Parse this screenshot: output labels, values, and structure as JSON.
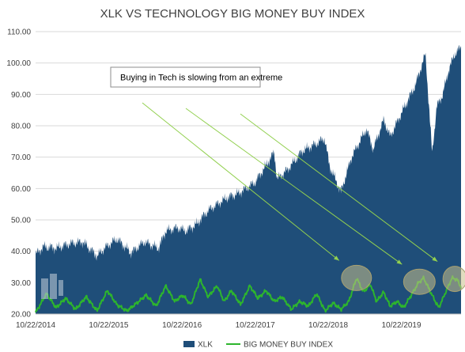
{
  "chart_data": {
    "type": "area",
    "title": "XLK VS TECHNOLOGY BIG MONEY BUY INDEX",
    "xlabel": "",
    "ylabel": "",
    "ylim": [
      20,
      110
    ],
    "y_ticks": [
      "20.00",
      "30.00",
      "40.00",
      "50.00",
      "60.00",
      "70.00",
      "80.00",
      "90.00",
      "100.00",
      "110.00"
    ],
    "x_ticks": [
      "10/22/2014",
      "10/22/2015",
      "10/22/2016",
      "10/22/2017",
      "10/22/2018",
      "10/22/2019"
    ],
    "x_range": [
      "2014-10-22",
      "2020-08-15"
    ],
    "grid": true,
    "legend_position": "bottom",
    "annotation": "Buying in Tech is slowing from an extreme",
    "series": [
      {
        "name": "XLK",
        "style": "area",
        "color": "#1f4e79",
        "points": [
          [
            "2014-10-22",
            39.0
          ],
          [
            "2014-12-01",
            41.5
          ],
          [
            "2015-02-01",
            41.0
          ],
          [
            "2015-04-15",
            42.5
          ],
          [
            "2015-06-15",
            43.0
          ],
          [
            "2015-08-24",
            38.5
          ],
          [
            "2015-10-01",
            41.0
          ],
          [
            "2015-12-01",
            44.0
          ],
          [
            "2016-02-10",
            39.5
          ],
          [
            "2016-04-15",
            43.0
          ],
          [
            "2016-06-27",
            41.0
          ],
          [
            "2016-08-01",
            46.5
          ],
          [
            "2016-10-01",
            47.5
          ],
          [
            "2016-11-10",
            46.5
          ],
          [
            "2016-12-31",
            48.5
          ],
          [
            "2017-03-01",
            53.0
          ],
          [
            "2017-06-01",
            57.0
          ],
          [
            "2017-08-01",
            58.5
          ],
          [
            "2017-10-22",
            62.0
          ],
          [
            "2018-01-25",
            71.5
          ],
          [
            "2018-02-08",
            63.0
          ],
          [
            "2018-04-01",
            66.0
          ],
          [
            "2018-06-15",
            72.0
          ],
          [
            "2018-08-15",
            74.0
          ],
          [
            "2018-10-03",
            76.0
          ],
          [
            "2018-10-29",
            67.0
          ],
          [
            "2018-12-24",
            59.0
          ],
          [
            "2019-02-15",
            70.0
          ],
          [
            "2019-04-30",
            79.0
          ],
          [
            "2019-06-03",
            72.5
          ],
          [
            "2019-07-26",
            82.0
          ],
          [
            "2019-08-26",
            76.5
          ],
          [
            "2019-10-22",
            84.0
          ],
          [
            "2019-12-31",
            93.0
          ],
          [
            "2020-02-19",
            103.0
          ],
          [
            "2020-03-23",
            71.0
          ],
          [
            "2020-04-15",
            86.0
          ],
          [
            "2020-05-15",
            90.0
          ],
          [
            "2020-06-15",
            98.0
          ],
          [
            "2020-07-15",
            103.0
          ],
          [
            "2020-08-15",
            105.0
          ]
        ]
      },
      {
        "name": "BIG MONEY BUY INDEX",
        "style": "line",
        "color": "#2db52d",
        "points": [
          [
            "2014-10-22",
            20.5
          ],
          [
            "2014-12-15",
            26.5
          ],
          [
            "2015-02-01",
            22.0
          ],
          [
            "2015-03-20",
            25.0
          ],
          [
            "2015-05-10",
            21.5
          ],
          [
            "2015-07-01",
            25.5
          ],
          [
            "2015-08-24",
            21.0
          ],
          [
            "2015-10-15",
            27.5
          ],
          [
            "2015-12-01",
            23.0
          ],
          [
            "2016-01-20",
            21.0
          ],
          [
            "2016-03-10",
            23.5
          ],
          [
            "2016-04-25",
            26.0
          ],
          [
            "2016-06-15",
            22.5
          ],
          [
            "2016-08-01",
            29.0
          ],
          [
            "2016-09-15",
            24.0
          ],
          [
            "2016-10-25",
            26.0
          ],
          [
            "2016-12-05",
            23.0
          ],
          [
            "2017-01-20",
            31.0
          ],
          [
            "2017-03-01",
            25.5
          ],
          [
            "2017-04-15",
            29.0
          ],
          [
            "2017-05-20",
            24.0
          ],
          [
            "2017-06-25",
            27.5
          ],
          [
            "2017-08-10",
            23.0
          ],
          [
            "2017-09-25",
            29.0
          ],
          [
            "2017-11-05",
            25.0
          ],
          [
            "2017-12-15",
            27.5
          ],
          [
            "2018-01-25",
            24.0
          ],
          [
            "2018-03-05",
            25.5
          ],
          [
            "2018-04-20",
            21.5
          ],
          [
            "2018-06-01",
            24.0
          ],
          [
            "2018-07-15",
            22.5
          ],
          [
            "2018-08-25",
            26.5
          ],
          [
            "2018-10-05",
            21.0
          ],
          [
            "2018-11-15",
            23.5
          ],
          [
            "2018-12-24",
            21.5
          ],
          [
            "2019-02-01",
            24.0
          ],
          [
            "2019-03-12",
            31.5
          ],
          [
            "2019-04-15",
            27.0
          ],
          [
            "2019-05-20",
            29.5
          ],
          [
            "2019-06-20",
            24.0
          ],
          [
            "2019-07-25",
            27.0
          ],
          [
            "2019-08-26",
            22.5
          ],
          [
            "2019-10-01",
            24.0
          ],
          [
            "2019-11-01",
            22.0
          ],
          [
            "2019-12-05",
            25.5
          ],
          [
            "2020-01-15",
            30.0
          ],
          [
            "2020-02-10",
            31.5
          ],
          [
            "2020-03-23",
            26.0
          ],
          [
            "2020-04-25",
            22.0
          ],
          [
            "2020-05-30",
            27.0
          ],
          [
            "2020-06-30",
            31.5
          ],
          [
            "2020-07-25",
            31.0
          ],
          [
            "2020-08-15",
            28.5
          ]
        ]
      }
    ],
    "highlight_dates": [
      "2019-03-12",
      "2020-01-20",
      "2020-07-15"
    ]
  }
}
